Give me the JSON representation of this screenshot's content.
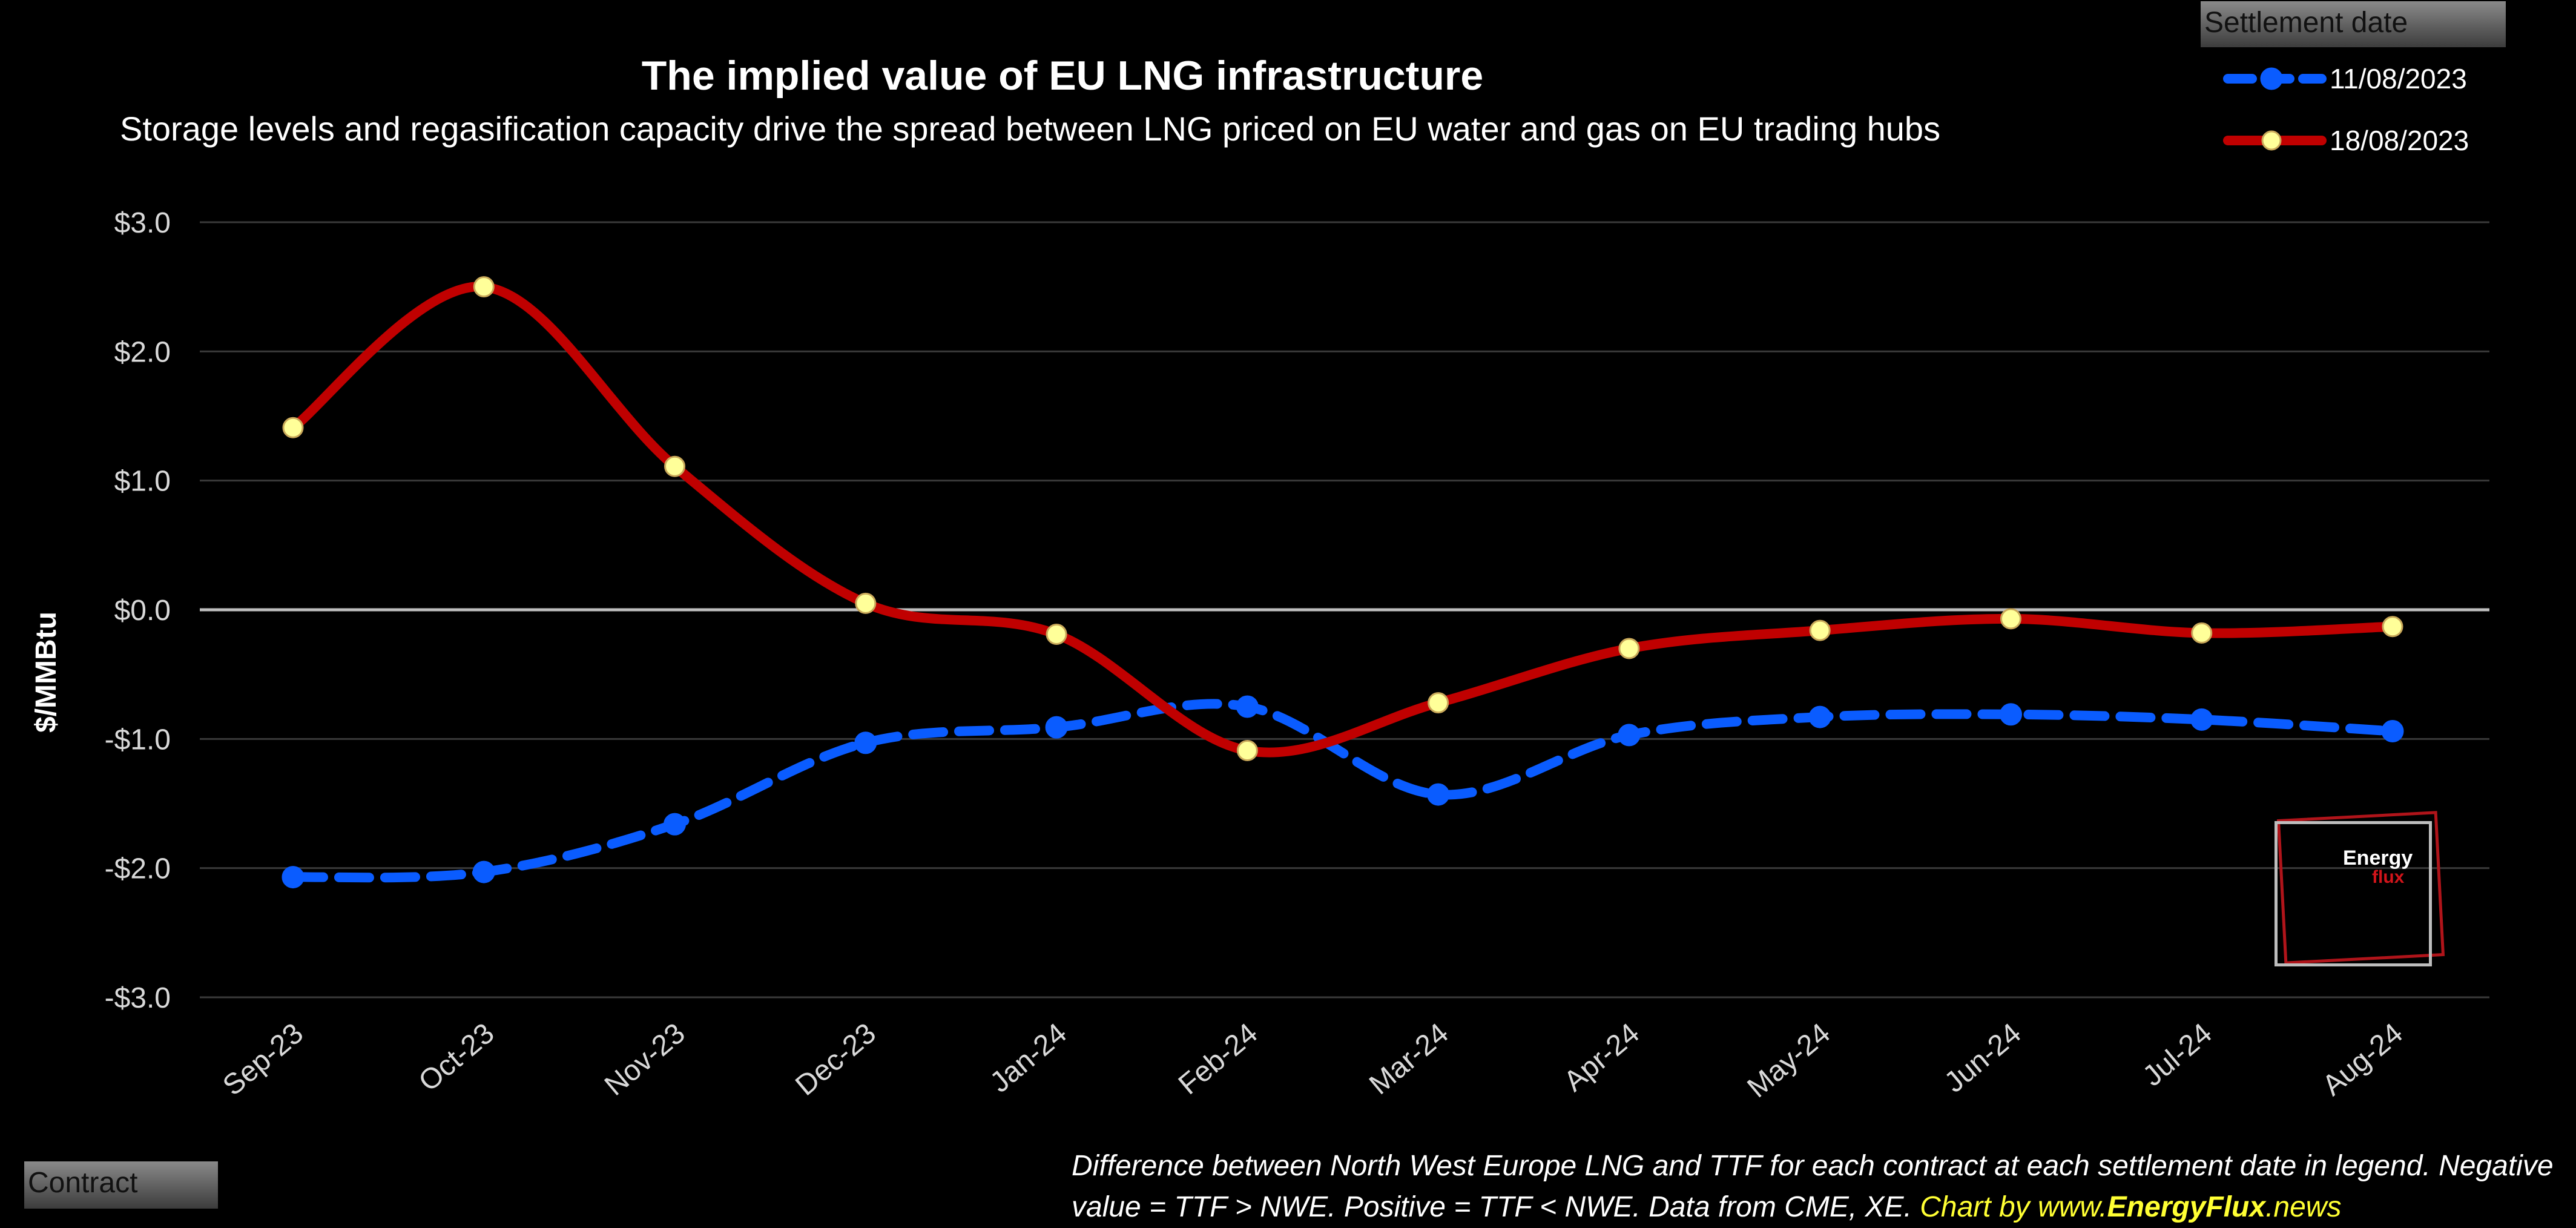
{
  "header": {
    "title": "The implied value of EU LNG infrastructure",
    "subtitle": "Storage levels and regasification capacity drive the spread between LNG priced on EU water and gas on EU trading hubs"
  },
  "filters": {
    "settlement_label": "Settlement date",
    "contract_label": "Contract"
  },
  "footnote": {
    "text": "Difference between North West Europe LNG and TTF for each contract at each settlement date in legend. Negative value = TTF > NWE. Positive = TTF < NWE. Data from CME, XE.",
    "credit_prefix": "Chart by www.",
    "credit_brand": "EnergyFlux",
    "credit_suffix": ".news"
  },
  "logo": {
    "word1": "Energy",
    "word2": "flux"
  },
  "chart_data": {
    "type": "line",
    "title": "The implied value of EU LNG infrastructure",
    "subtitle": "Storage levels and regasification capacity drive the spread between LNG priced on EU water and gas on EU trading hubs",
    "xlabel": "",
    "ylabel": "$/MMBtu",
    "ylim": [
      -3,
      3
    ],
    "yticks": [
      3,
      2,
      1,
      0,
      -1,
      -2,
      -3
    ],
    "ytick_labels": [
      "$3.0",
      "$2.0",
      "$1.0",
      "$0.0",
      "-$1.0",
      "-$2.0",
      "-$3.0"
    ],
    "categories": [
      "Sep-23",
      "Oct-23",
      "Nov-23",
      "Dec-23",
      "Jan-24",
      "Feb-24",
      "Mar-24",
      "Apr-24",
      "May-24",
      "Jun-24",
      "Jul-24",
      "Aug-24"
    ],
    "grid": true,
    "legend_position": "top-right",
    "legend_title": "Settlement date",
    "series": [
      {
        "name": "11/08/2023",
        "color": "#0a5cff",
        "style": "dashed",
        "marker": "circle",
        "values": [
          -2.07,
          -2.03,
          -1.66,
          -1.03,
          -0.91,
          -0.75,
          -1.43,
          -0.97,
          -0.83,
          -0.81,
          -0.85,
          -0.94
        ]
      },
      {
        "name": "18/08/2023",
        "color": "#c00000",
        "style": "solid",
        "marker": "circle",
        "marker_color": "#ffff99",
        "values": [
          1.41,
          2.5,
          1.11,
          0.05,
          -0.19,
          -1.09,
          -0.72,
          -0.3,
          -0.16,
          -0.07,
          -0.18,
          -0.13
        ]
      }
    ]
  }
}
